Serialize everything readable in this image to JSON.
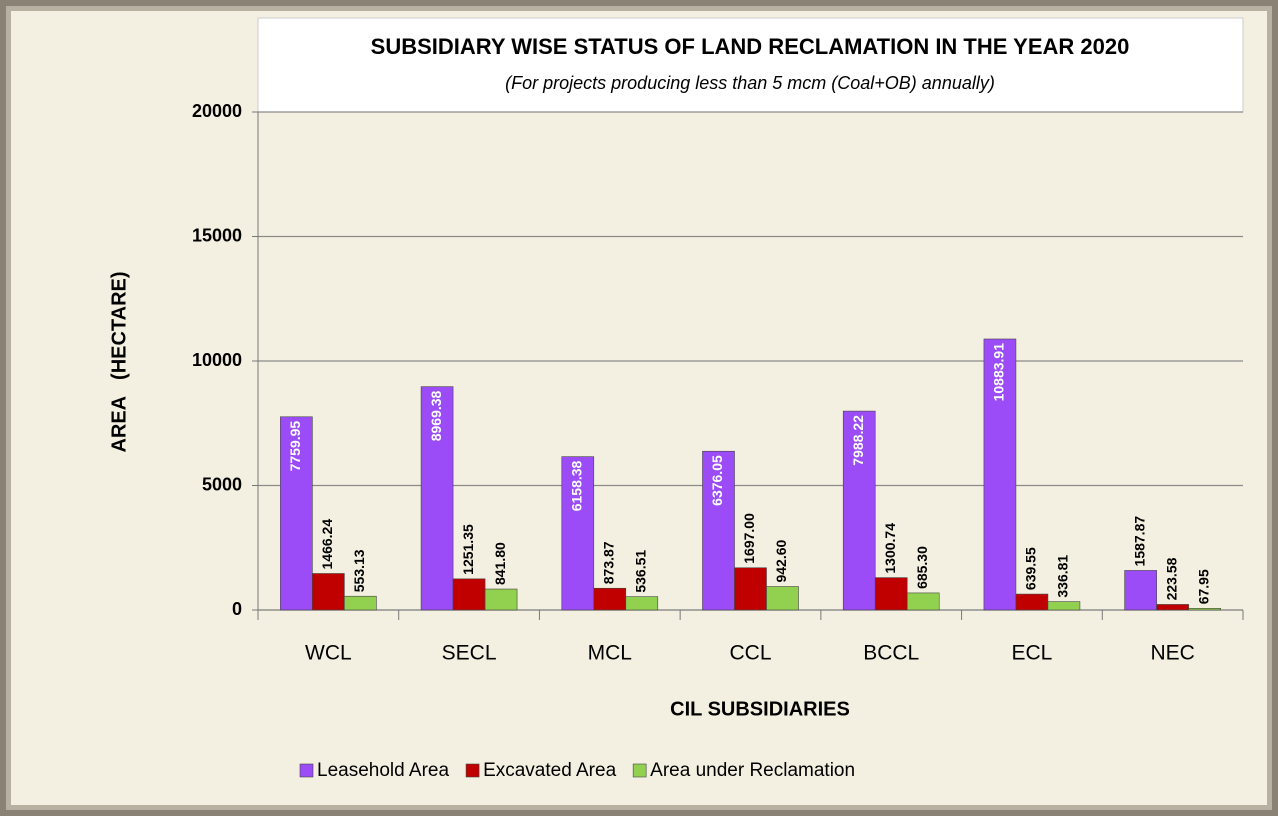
{
  "chart_data": {
    "type": "bar",
    "title": "SUBSIDIARY WISE STATUS OF LAND RECLAMATION IN THE YEAR 2020",
    "subtitle": "(For projects producing less than 5 mcm (Coal+OB) annually)",
    "x_label": "CIL SUBSIDIARIES",
    "y_label": "AREA   (HECTARE)",
    "categories": [
      "WCL",
      "SECL",
      "MCL",
      "CCL",
      "BCCL",
      "ECL",
      "NEC"
    ],
    "series": [
      {
        "name": "Leasehold Area",
        "color": "#9b4cf7",
        "values": [
          7759.95,
          8969.38,
          6158.38,
          6376.05,
          7988.22,
          10883.91,
          1587.87
        ],
        "value_labels": [
          "7759.95",
          "8969.38",
          "6158.38",
          "6376.05",
          "7988.22",
          "10883.91",
          "1587.87"
        ]
      },
      {
        "name": "Excavated Area",
        "color": "#c00000",
        "values": [
          1466.24,
          1251.35,
          873.87,
          1697,
          1300.74,
          639.55,
          223.58
        ],
        "value_labels": [
          "1466.24",
          "1251.35",
          "873.87",
          "1697.00",
          "1300.74",
          "639.55",
          "223.58"
        ]
      },
      {
        "name": "Area under Reclamation",
        "color": "#92d050",
        "values": [
          553.13,
          841.8,
          536.51,
          942.6,
          685.3,
          336.81,
          67.95
        ],
        "value_labels": [
          "553.13",
          "841.80",
          "536.51",
          "942.60",
          "685.30",
          "336.81",
          "67.95"
        ]
      }
    ],
    "ylim": [
      0,
      20000
    ],
    "yticks": [
      0,
      5000,
      10000,
      15000,
      20000
    ],
    "grid": true,
    "legend": "bottom"
  }
}
